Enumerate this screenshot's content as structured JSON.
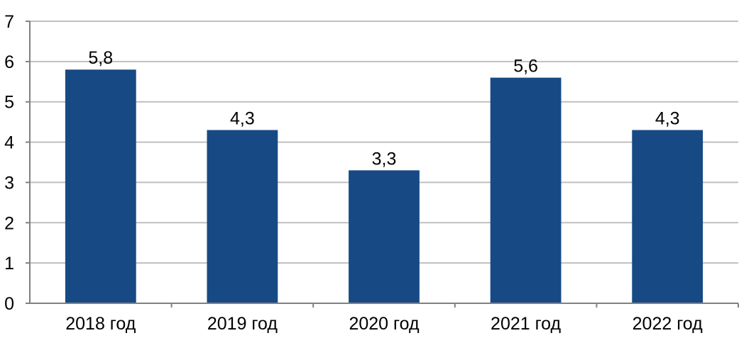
{
  "chart_data": {
    "type": "bar",
    "categories": [
      "2018 год",
      "2019 год",
      "2020 год",
      "2021 год",
      "2022 год"
    ],
    "values": [
      5.8,
      4.3,
      3.3,
      5.6,
      4.3
    ],
    "data_labels": [
      "5,8",
      "4,3",
      "3,3",
      "5,6",
      "4,3"
    ],
    "ylim": [
      0,
      7
    ],
    "yticks": [
      0,
      1,
      2,
      3,
      4,
      5,
      6,
      7
    ],
    "grid": true,
    "legend": "none",
    "colors": {
      "bar": "#174a84",
      "grid": "#bfbfbf",
      "axis": "#808080"
    }
  }
}
